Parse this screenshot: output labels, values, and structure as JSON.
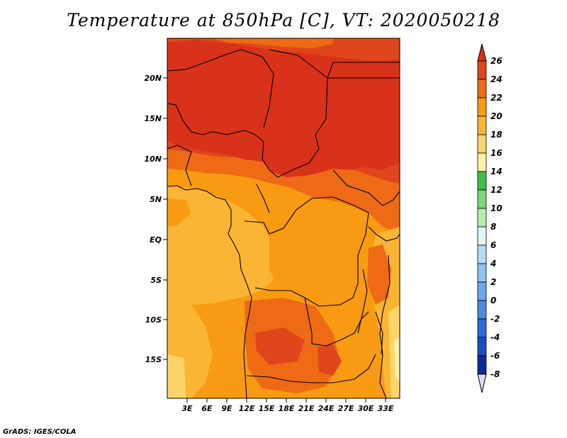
{
  "title": "Temperature at 850hPa [C], VT: 2020050218",
  "credit": "GrADS: IGES/COLA",
  "map": {
    "lat_ticks": [
      "20N",
      "15N",
      "10N",
      "5N",
      "EQ",
      "5S",
      "10S",
      "15S"
    ],
    "lon_ticks": [
      "3E",
      "6E",
      "9E",
      "12E",
      "15E",
      "18E",
      "21E",
      "24E",
      "27E",
      "30E",
      "33E"
    ]
  },
  "colorbar": {
    "labels": [
      "26",
      "24",
      "22",
      "20",
      "18",
      "16",
      "14",
      "12",
      "10",
      "8",
      "6",
      "4",
      "2",
      "0",
      "-2",
      "-4",
      "-6",
      "-8"
    ],
    "colors": {
      "above_26": "#d9321a",
      "24_26": "#e0461b",
      "22_24": "#ee6a14",
      "20_22": "#f89a12",
      "18_20": "#fbb534",
      "16_18": "#fcd56a",
      "14_16": "#fdf3a8",
      "12_14": "#3cbf44",
      "10_12": "#7ad97a",
      "8_10": "#b3edb0",
      "6_8": "#e2f6f4",
      "4_6": "#b4dcf6",
      "2_4": "#8ec3f2",
      "0_2": "#6aa7ec",
      "m2_0": "#4a8ae4",
      "m4_m2": "#2c68d8",
      "m6_m4": "#1a4cc4",
      "m8_m6": "#0e2a9a",
      "below_m8": "#dcdcf4"
    }
  }
}
